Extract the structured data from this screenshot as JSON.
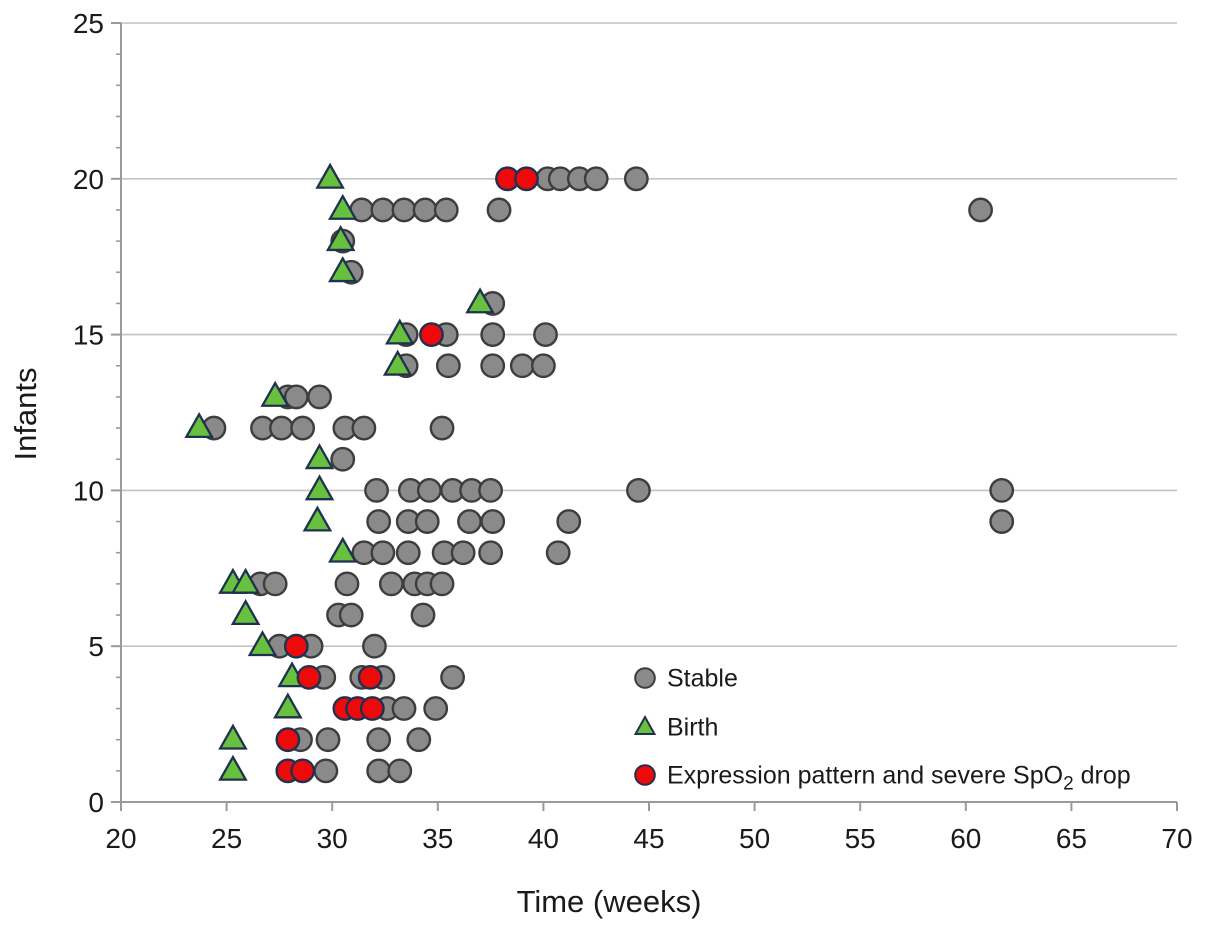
{
  "figure": {
    "background": "#ffffff",
    "text_color": "#1a1a1a",
    "axis_color": "#9a9a9a",
    "gridline_color": "#c3c3c3"
  },
  "chart_data": {
    "type": "scatter",
    "title": "",
    "xlabel": "Time (weeks)",
    "ylabel": "Infants",
    "xlim": [
      20,
      70
    ],
    "ylim": [
      0,
      25
    ],
    "xticks": [
      20,
      25,
      30,
      35,
      40,
      45,
      50,
      55,
      60,
      65,
      70
    ],
    "yticks": [
      0,
      5,
      10,
      15,
      20,
      25
    ],
    "grid": "horizontal-major-only",
    "legend_position": "inside-lower-right",
    "series": [
      {
        "name": "Stable",
        "marker": "circle",
        "fill": "#8a8a8a",
        "stroke": "#3d3d3d",
        "points": [
          [
            29.7,
            1
          ],
          [
            32.2,
            1
          ],
          [
            33.2,
            1
          ],
          [
            28.5,
            2
          ],
          [
            29.8,
            2
          ],
          [
            32.2,
            2
          ],
          [
            34.1,
            2
          ],
          [
            32.6,
            3
          ],
          [
            33.4,
            3
          ],
          [
            34.9,
            3
          ],
          [
            29.6,
            4
          ],
          [
            31.4,
            4
          ],
          [
            32.4,
            4
          ],
          [
            35.7,
            4
          ],
          [
            27.5,
            5
          ],
          [
            29.0,
            5
          ],
          [
            32.0,
            5
          ],
          [
            30.3,
            6
          ],
          [
            30.9,
            6
          ],
          [
            34.3,
            6
          ],
          [
            26.6,
            7
          ],
          [
            27.3,
            7
          ],
          [
            30.7,
            7
          ],
          [
            32.8,
            7
          ],
          [
            33.9,
            7
          ],
          [
            34.5,
            7
          ],
          [
            35.2,
            7
          ],
          [
            31.5,
            8
          ],
          [
            32.4,
            8
          ],
          [
            33.6,
            8
          ],
          [
            35.3,
            8
          ],
          [
            36.2,
            8
          ],
          [
            37.5,
            8
          ],
          [
            40.7,
            8
          ],
          [
            32.2,
            9
          ],
          [
            33.6,
            9
          ],
          [
            34.5,
            9
          ],
          [
            36.5,
            9
          ],
          [
            37.6,
            9
          ],
          [
            41.2,
            9
          ],
          [
            61.7,
            9
          ],
          [
            32.1,
            10
          ],
          [
            33.7,
            10
          ],
          [
            34.6,
            10
          ],
          [
            35.7,
            10
          ],
          [
            36.6,
            10
          ],
          [
            37.5,
            10
          ],
          [
            44.5,
            10
          ],
          [
            61.7,
            10
          ],
          [
            30.5,
            11
          ],
          [
            24.4,
            12
          ],
          [
            26.7,
            12
          ],
          [
            27.6,
            12
          ],
          [
            28.6,
            12
          ],
          [
            30.6,
            12
          ],
          [
            31.5,
            12
          ],
          [
            35.2,
            12
          ],
          [
            27.9,
            13
          ],
          [
            28.3,
            13
          ],
          [
            29.4,
            13
          ],
          [
            33.5,
            14
          ],
          [
            35.5,
            14
          ],
          [
            37.6,
            14
          ],
          [
            39.0,
            14
          ],
          [
            40.0,
            14
          ],
          [
            33.5,
            15
          ],
          [
            35.4,
            15
          ],
          [
            37.6,
            15
          ],
          [
            40.1,
            15
          ],
          [
            37.6,
            16
          ],
          [
            30.9,
            17
          ],
          [
            30.5,
            18
          ],
          [
            31.4,
            19
          ],
          [
            32.4,
            19
          ],
          [
            33.4,
            19
          ],
          [
            34.4,
            19
          ],
          [
            35.4,
            19
          ],
          [
            37.9,
            19
          ],
          [
            60.7,
            19
          ],
          [
            40.2,
            20
          ],
          [
            40.8,
            20
          ],
          [
            41.7,
            20
          ],
          [
            42.5,
            20
          ],
          [
            44.4,
            20
          ]
        ]
      },
      {
        "name": "Birth",
        "marker": "triangle",
        "fill": "#68c03f",
        "stroke": "#203050",
        "points": [
          [
            25.3,
            1
          ],
          [
            25.3,
            2
          ],
          [
            27.9,
            3
          ],
          [
            28.1,
            4
          ],
          [
            26.7,
            5
          ],
          [
            25.9,
            6
          ],
          [
            25.3,
            7
          ],
          [
            25.9,
            7
          ],
          [
            30.5,
            8
          ],
          [
            29.3,
            9
          ],
          [
            29.4,
            10
          ],
          [
            29.4,
            11
          ],
          [
            23.7,
            12
          ],
          [
            27.3,
            13
          ],
          [
            33.1,
            14
          ],
          [
            33.2,
            15
          ],
          [
            37.0,
            16
          ],
          [
            30.5,
            17
          ],
          [
            30.4,
            18
          ],
          [
            30.5,
            19
          ],
          [
            29.9,
            20
          ]
        ]
      },
      {
        "name": "Expression pattern and severe SpO2 drop",
        "marker": "circle",
        "fill": "#ee0a0a",
        "stroke": "#203050",
        "points": [
          [
            27.9,
            1
          ],
          [
            28.6,
            1
          ],
          [
            27.9,
            2
          ],
          [
            30.6,
            3
          ],
          [
            31.2,
            3
          ],
          [
            31.9,
            3
          ],
          [
            28.9,
            4
          ],
          [
            31.8,
            4
          ],
          [
            28.3,
            5
          ],
          [
            34.7,
            15
          ],
          [
            38.3,
            20
          ],
          [
            39.2,
            20
          ]
        ]
      }
    ],
    "legend": {
      "entries": [
        {
          "id": "stable",
          "label": "Stable",
          "marker": "circle",
          "fill": "#8a8a8a",
          "stroke": "#3d3d3d"
        },
        {
          "id": "birth",
          "label": "Birth",
          "marker": "triangle",
          "fill": "#68c03f",
          "stroke": "#203050"
        },
        {
          "id": "expression",
          "label_prefix": "Expression pattern and severe SpO",
          "label_sub": "2",
          "label_suffix": " drop",
          "marker": "circle",
          "fill": "#ee0a0a",
          "stroke": "#203050"
        }
      ]
    }
  }
}
